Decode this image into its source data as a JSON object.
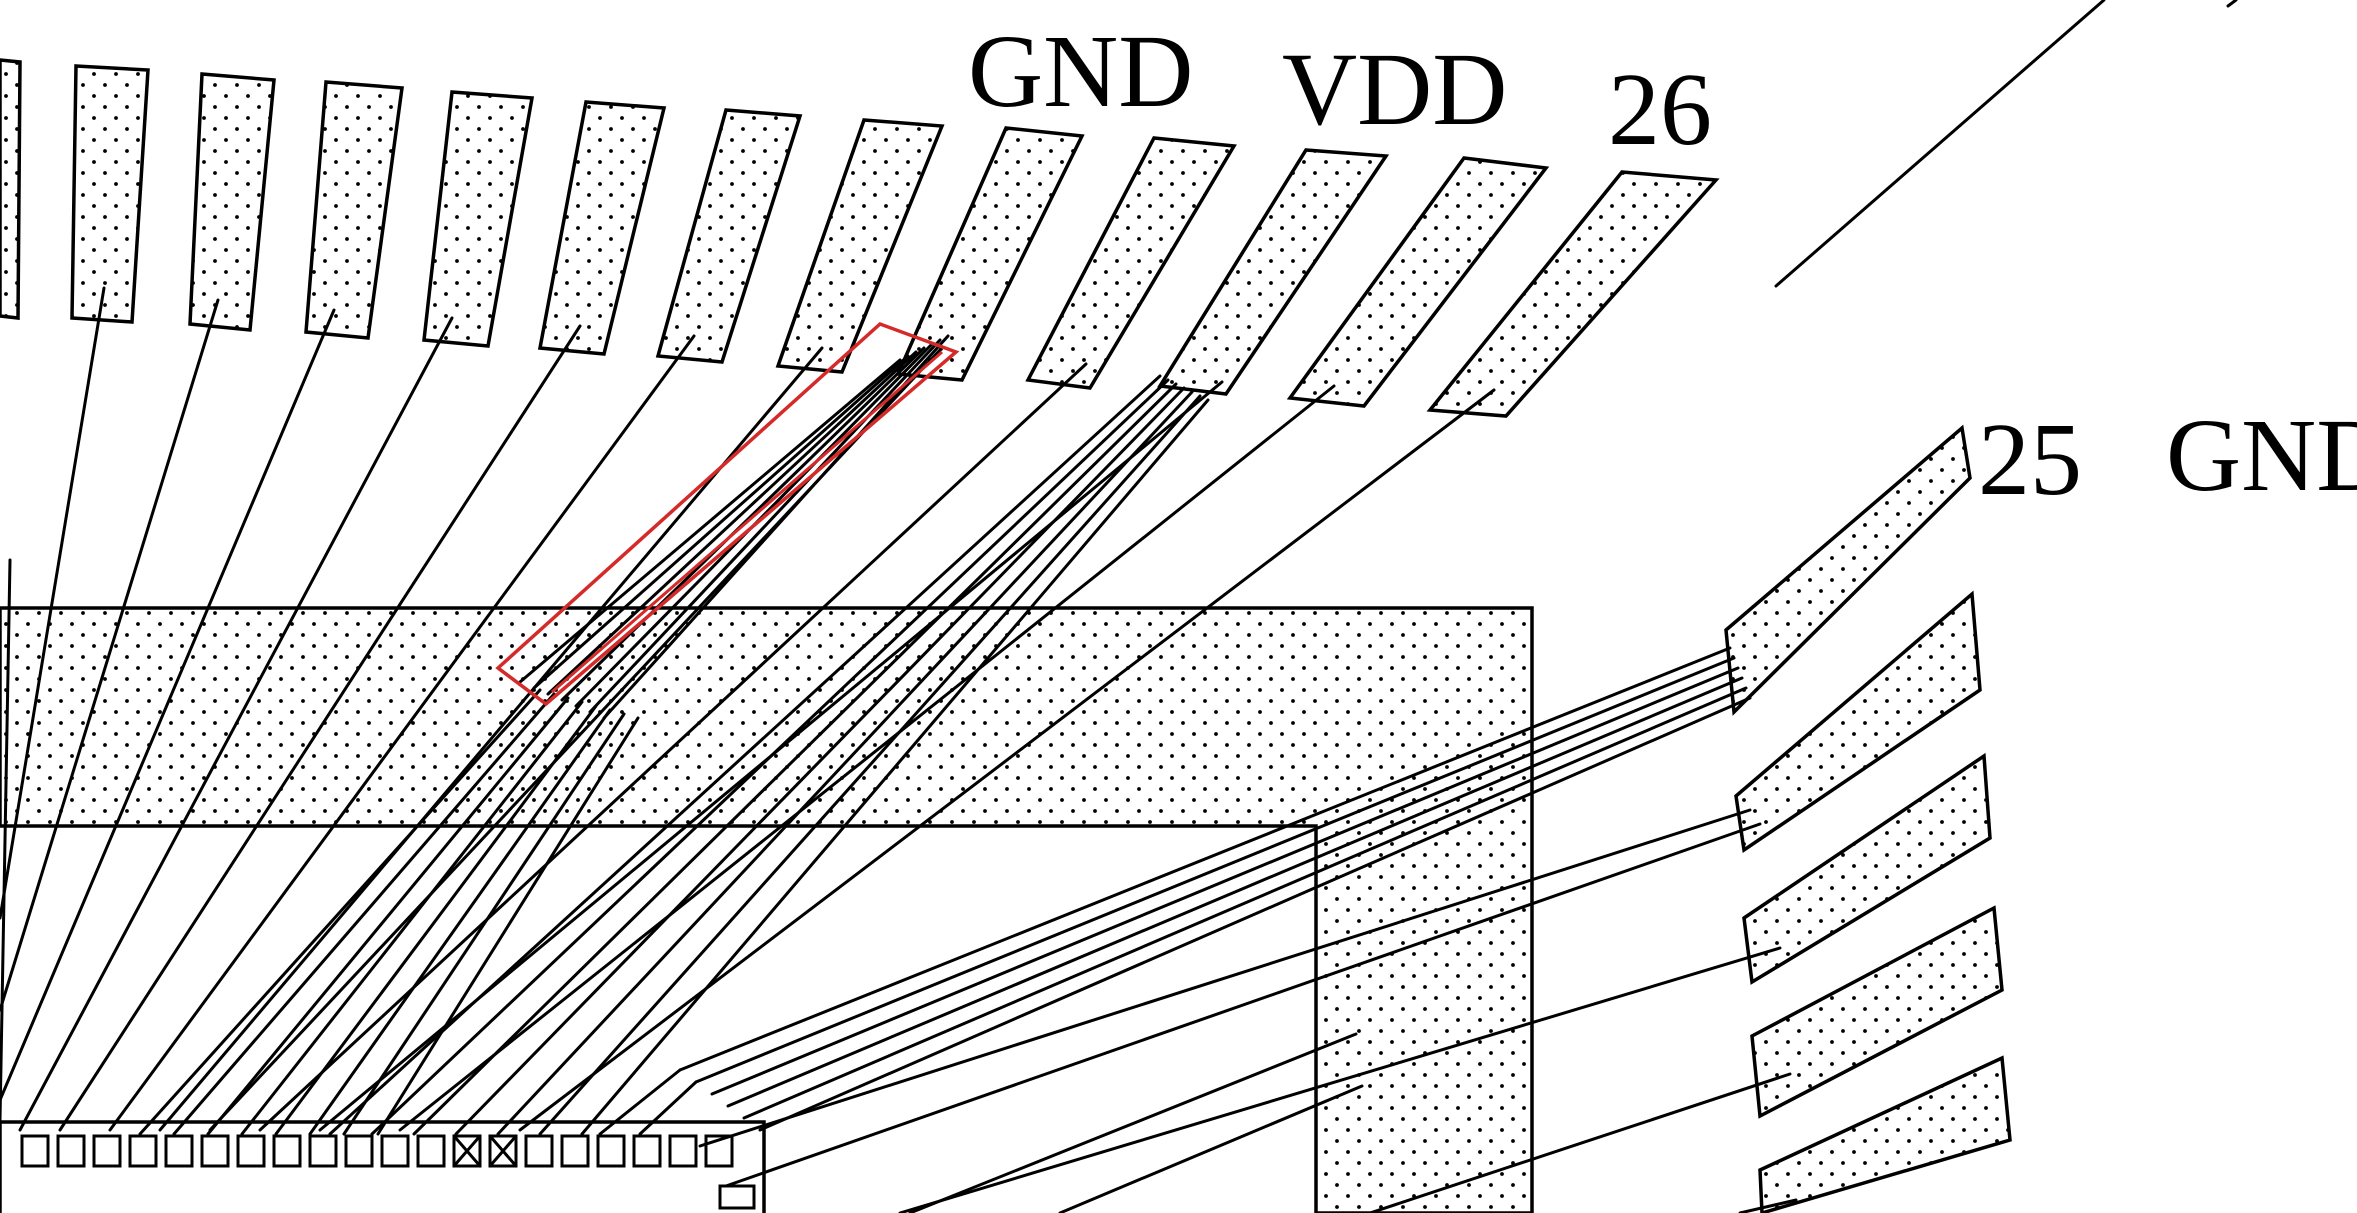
{
  "labels": {
    "gnd_top": "GND",
    "vdd_top": "VDD",
    "pin_26": "26",
    "pin_25": "25",
    "gnd_right": "GND"
  },
  "colors": {
    "stroke": "#000000",
    "highlight": "#d42a2a",
    "background": "#ffffff"
  }
}
